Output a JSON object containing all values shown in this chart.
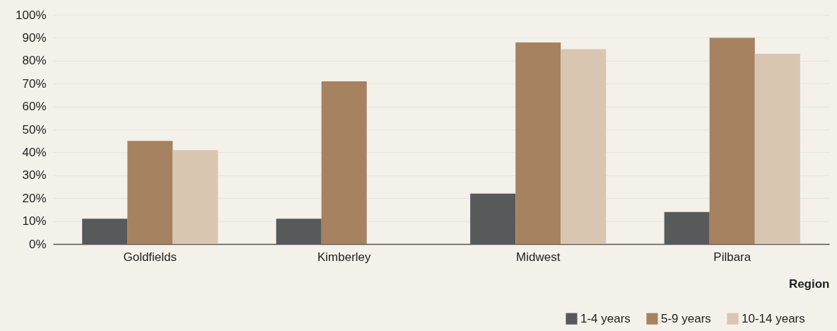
{
  "chart_data": {
    "type": "bar",
    "xlabel": "Region",
    "categories": [
      "Goldfields",
      "Kimberley",
      "Midwest",
      "Pilbara"
    ],
    "series": [
      {
        "name": "1-4 years",
        "color": "#58595b",
        "values": [
          11,
          11,
          22,
          14
        ]
      },
      {
        "name": "5-9 years",
        "color": "#a68260",
        "values": [
          45,
          71,
          88,
          90
        ]
      },
      {
        "name": "10-14 years",
        "color": "#d9c6b1",
        "values": [
          41,
          0,
          85,
          83
        ]
      }
    ],
    "ylim": [
      0,
      100
    ],
    "yticks": [
      {
        "value": 0,
        "label": "0%"
      },
      {
        "value": 10,
        "label": "10%"
      },
      {
        "value": 20,
        "label": "20%"
      },
      {
        "value": 30,
        "label": "30%"
      },
      {
        "value": 40,
        "label": "40%"
      },
      {
        "value": 50,
        "label": "50%"
      },
      {
        "value": 60,
        "label": "60%"
      },
      {
        "value": 70,
        "label": "70%"
      },
      {
        "value": 80,
        "label": "80%"
      },
      {
        "value": 90,
        "label": "90%"
      },
      {
        "value": 100,
        "label": "100%"
      }
    ],
    "grid": "y",
    "legend": "bottom right"
  }
}
